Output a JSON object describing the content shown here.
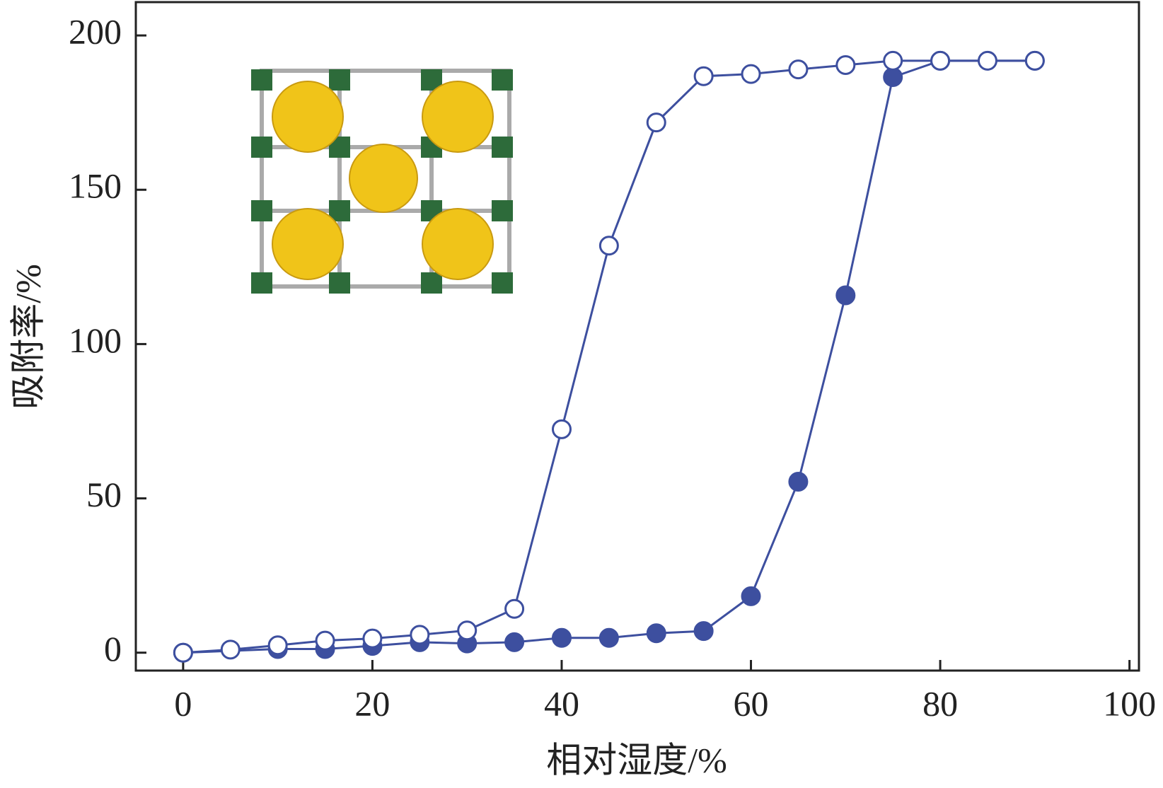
{
  "chart_data": {
    "type": "line",
    "xlabel": "相对湿度/%",
    "ylabel": "吸附率/%",
    "xlim": [
      -5,
      101
    ],
    "ylim": [
      -5.8,
      210.8
    ],
    "xticks": [
      0,
      20,
      40,
      60,
      80,
      100
    ],
    "yticks": [
      0,
      50,
      100,
      150,
      200
    ],
    "series": [
      {
        "color": "#3d4f9f",
        "marker": "filled",
        "x": [
          0,
          10,
          15,
          20,
          25,
          30,
          35,
          40,
          45,
          50,
          55,
          60,
          65,
          70,
          75,
          80,
          90
        ],
        "values": [
          0,
          1.2,
          1.2,
          2.2,
          3.4,
          3,
          3.4,
          4.8,
          4.8,
          6.3,
          7,
          18.3,
          55.4,
          115.8,
          186.5,
          191.8,
          191.8
        ]
      },
      {
        "color": "#3d4f9f",
        "marker": "open",
        "x": [
          0,
          5,
          10,
          15,
          20,
          25,
          30,
          35,
          40,
          45,
          50,
          55,
          60,
          65,
          70,
          75,
          80,
          85,
          90
        ],
        "values": [
          0,
          1,
          2.4,
          3.9,
          4.6,
          5.8,
          7.2,
          14.2,
          72.4,
          131.9,
          171.8,
          186.8,
          187.5,
          189,
          190.4,
          191.8,
          191.8,
          191.8,
          191.8
        ]
      }
    ]
  }
}
